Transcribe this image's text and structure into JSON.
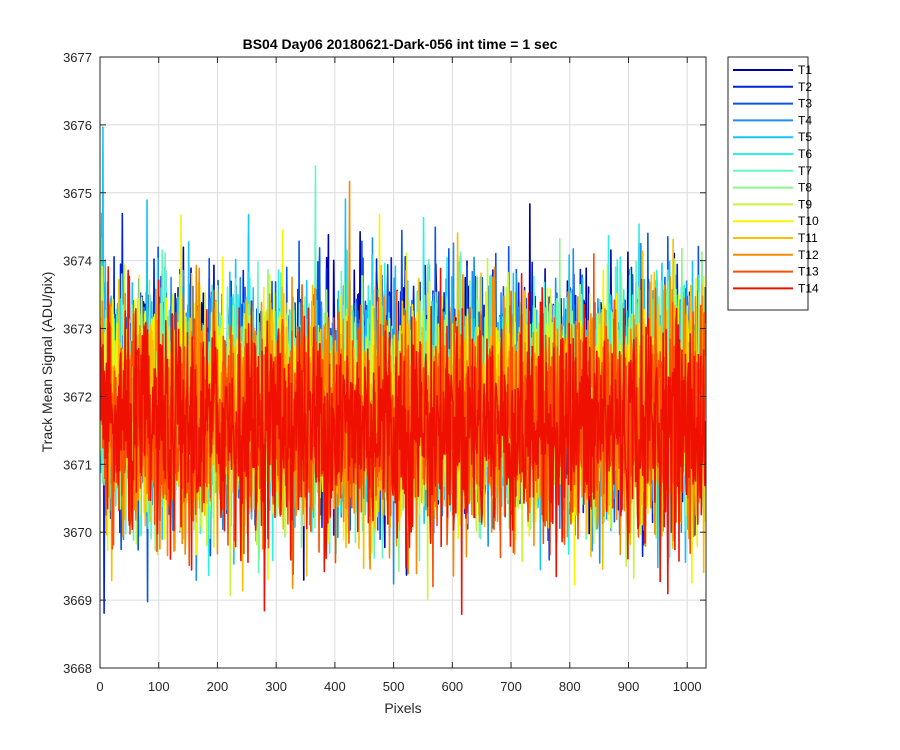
{
  "chart_data": {
    "type": "line",
    "title": "BS04 Day06 20180621-Dark-056 int time = 1 sec",
    "xlabel": "Pixels",
    "ylabel": "Track Mean Signal (ADU/pix)",
    "xlim": [
      0,
      1032
    ],
    "ylim": [
      3668,
      3677
    ],
    "xticks": [
      "0",
      "100",
      "200",
      "300",
      "400",
      "500",
      "600",
      "700",
      "800",
      "900",
      "1000"
    ],
    "yticks": [
      "3668",
      "3669",
      "3670",
      "3671",
      "3672",
      "3673",
      "3674",
      "3675",
      "3676",
      "3677"
    ],
    "grid": true,
    "legend_position": "outside-top-right",
    "n_points": 1032,
    "mean": 3671.9,
    "series": [
      {
        "name": "T1",
        "color": "#0000a6"
      },
      {
        "name": "T2",
        "color": "#0022d8"
      },
      {
        "name": "T3",
        "color": "#0a55e8"
      },
      {
        "name": "T4",
        "color": "#1b8ef0"
      },
      {
        "name": "T5",
        "color": "#18c4f5"
      },
      {
        "name": "T6",
        "color": "#2af0e8"
      },
      {
        "name": "T7",
        "color": "#66f5c0"
      },
      {
        "name": "T8",
        "color": "#8cf58c"
      },
      {
        "name": "T9",
        "color": "#c8f53c"
      },
      {
        "name": "T10",
        "color": "#f5f500"
      },
      {
        "name": "T11",
        "color": "#f8c000"
      },
      {
        "name": "T12",
        "color": "#f88a00"
      },
      {
        "name": "T13",
        "color": "#f85000"
      },
      {
        "name": "T14",
        "color": "#f01000"
      }
    ]
  }
}
